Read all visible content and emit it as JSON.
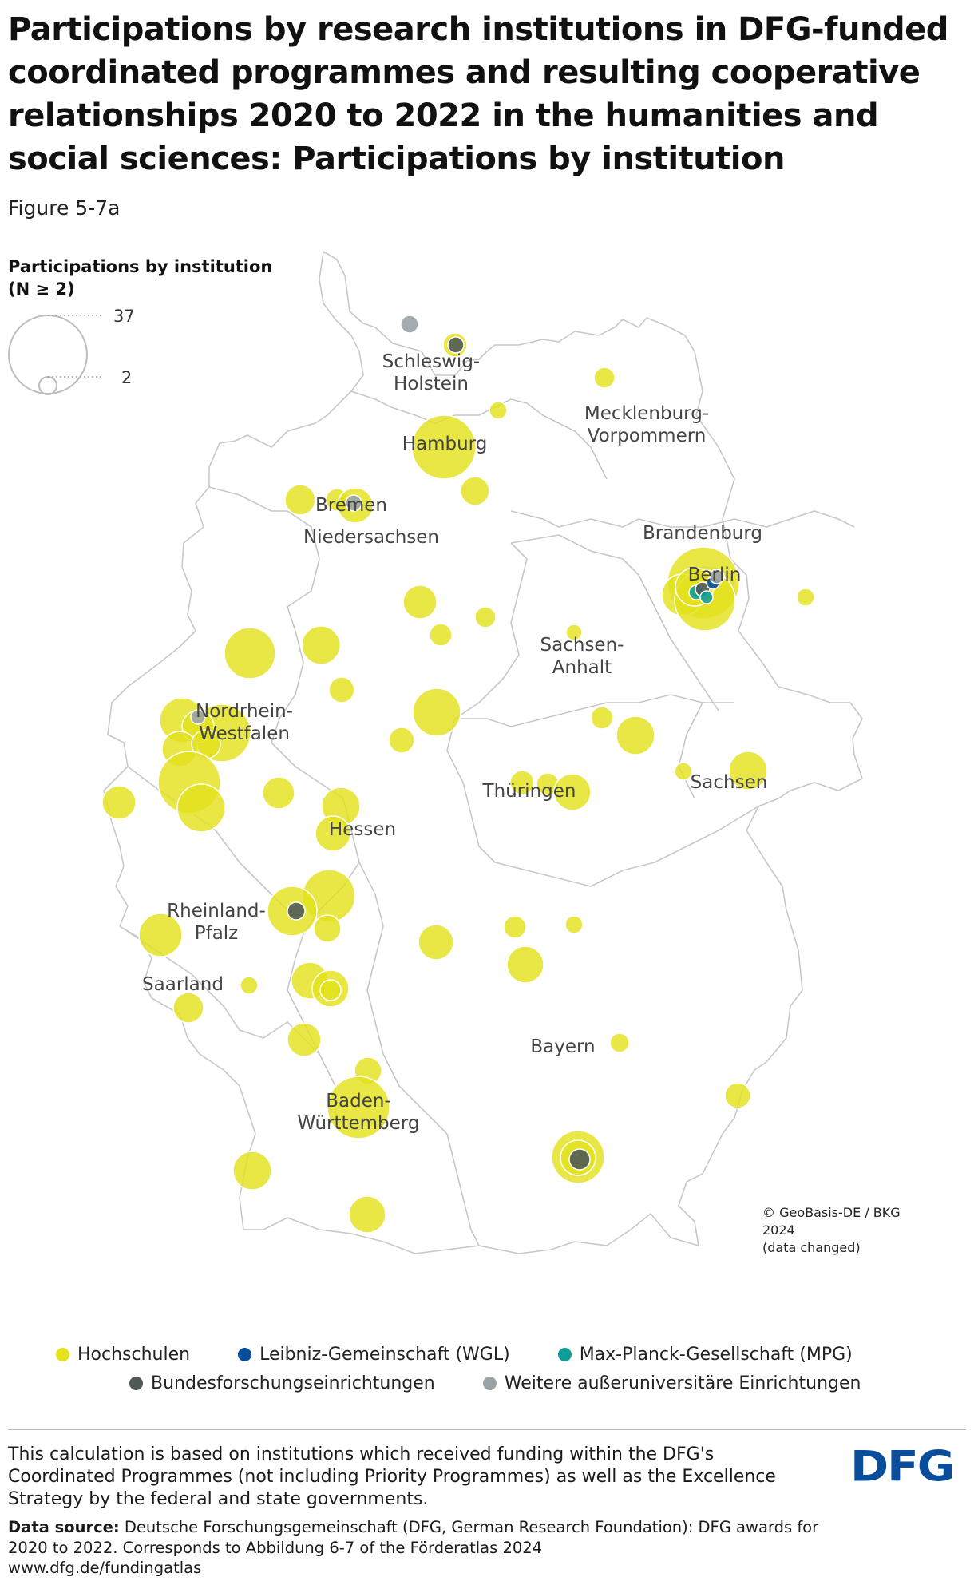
{
  "title": "Participations by research institutions in DFG-funded coordinated programmes and resulting cooperative relationships 2020 to 2022 in the humanities and social sciences: Participations by institution",
  "figure_label": "Figure 5-7a",
  "size_legend": {
    "title_line1": "Participations by institution",
    "title_line2": "(N ≥ 2)",
    "max_label": "37",
    "min_label": "2"
  },
  "colors": {
    "Hochschulen": "#e3e21c",
    "Leibniz-Gemeinschaft (WGL)": "#0a4e9b",
    "Max-Planck-Gesellschaft (MPG)": "#0f9e97",
    "Bundesforschungseinrichtungen": "#4f5a57",
    "Weitere außeruniversitäre Einrichtungen": "#9aa3a8",
    "border": "#c8c8c8"
  },
  "legend": {
    "items": [
      {
        "label": "Hochschulen",
        "color": "#e3e21c"
      },
      {
        "label": "Leibniz-Gemeinschaft (WGL)",
        "color": "#0a4e9b"
      },
      {
        "label": "Max-Planck-Gesellschaft (MPG)",
        "color": "#0f9e97"
      },
      {
        "label": "Bundesforschungseinrichtungen",
        "color": "#4f5a57"
      },
      {
        "label": "Weitere außeruniversitäre Einrichtungen",
        "color": "#9aa3a8"
      }
    ]
  },
  "states": [
    {
      "id": "schleswig-holstein",
      "lines": [
        "Schleswig-",
        "Holstein"
      ]
    },
    {
      "id": "mecklenburg-vorpommern",
      "lines": [
        "Mecklenburg-",
        "Vorpommern"
      ]
    },
    {
      "id": "hamburg",
      "lines": [
        "Hamburg"
      ]
    },
    {
      "id": "bremen",
      "lines": [
        "Bremen"
      ]
    },
    {
      "id": "niedersachsen",
      "lines": [
        "Niedersachsen"
      ]
    },
    {
      "id": "brandenburg",
      "lines": [
        "Brandenburg"
      ]
    },
    {
      "id": "berlin",
      "lines": [
        "Berlin"
      ]
    },
    {
      "id": "sachsen-anhalt",
      "lines": [
        "Sachsen-",
        "Anhalt"
      ]
    },
    {
      "id": "nordrhein-westfalen",
      "lines": [
        "Nordrhein-",
        "Westfalen"
      ]
    },
    {
      "id": "thueringen",
      "lines": [
        "Thüringen"
      ]
    },
    {
      "id": "sachsen",
      "lines": [
        "Sachsen"
      ]
    },
    {
      "id": "hessen",
      "lines": [
        "Hessen"
      ]
    },
    {
      "id": "rheinland-pfalz",
      "lines": [
        "Rheinland-",
        "Pfalz"
      ]
    },
    {
      "id": "saarland",
      "lines": [
        "Saarland"
      ]
    },
    {
      "id": "bayern",
      "lines": [
        "Bayern"
      ]
    },
    {
      "id": "baden-wuerttemberg",
      "lines": [
        "Baden-",
        "Württemberg"
      ]
    }
  ],
  "copyright": {
    "line1": "© GeoBasis-DE / BKG",
    "line2": "2024",
    "line3": "(data changed)"
  },
  "footer": {
    "note": "This calculation is based on institutions which received funding within the DFG's Coordinated Programmes (not including Priority Programmes) as well as the Excellence Strategy by the federal and state governments.",
    "source_label": "Data source:",
    "source_text": "Deutsche Forschungsgemeinschaft (DFG, German Research Foundation): DFG awards for 2020 to 2022. Corresponds to Abbildung 6-7 of the Förderatlas 2024",
    "url": "www.dfg.de/fundingatlas",
    "logo_text": "DFG"
  }
}
